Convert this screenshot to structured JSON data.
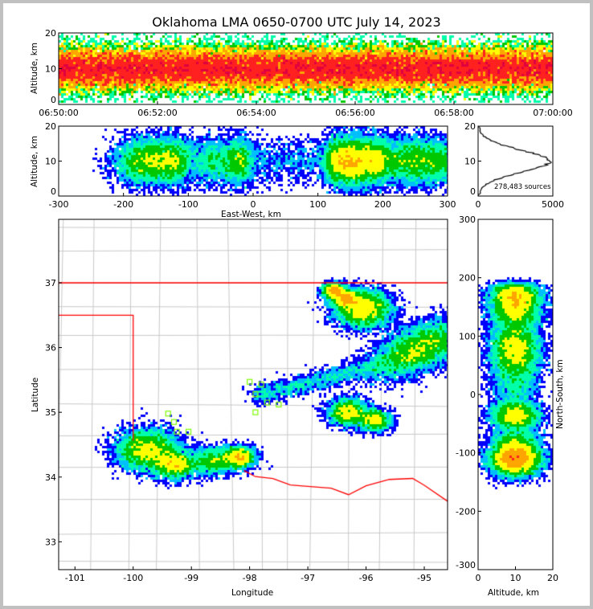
{
  "chart_data": [
    {
      "type": "heatmap",
      "panel": "time-height",
      "title": "Oklahoma LMA 0650-0700 UTC July 14, 2023",
      "xlabel": "",
      "ylabel": "Altitude, km",
      "xlim_minutes": [
        0,
        10
      ],
      "ylim": [
        0,
        20
      ],
      "xticks": [
        "06:50:00",
        "06:52:00",
        "06:54:00",
        "06:56:00",
        "06:58:00",
        "07:00:00"
      ],
      "yticks": [
        "0",
        "10",
        "20"
      ]
    },
    {
      "type": "heatmap",
      "panel": "east-west-altitude",
      "xlabel": "East-West, km",
      "ylabel": "Altitude, km",
      "xlim": [
        -300,
        300
      ],
      "ylim": [
        0,
        20
      ],
      "xticks": [
        "-300",
        "-200",
        "-100",
        "0",
        "100",
        "200",
        "300"
      ],
      "yticks": [
        "0",
        "10",
        "20"
      ]
    },
    {
      "type": "line",
      "panel": "altitude-histogram",
      "xlim": [
        0,
        5000
      ],
      "ylim": [
        0,
        20
      ],
      "xticks": [
        "0",
        "5000"
      ],
      "yticks": [
        "0",
        "10",
        "20"
      ],
      "annotation": "278,483 sources",
      "peak_altitude_km": 10.5,
      "peak_count": 4900
    },
    {
      "type": "heatmap",
      "panel": "plan-view",
      "xlabel": "Longitude",
      "ylabel": "Latitude",
      "xlim": [
        -101.28,
        -94.6
      ],
      "ylim": [
        32.57,
        37.98
      ],
      "xticks": [
        "-101",
        "-100",
        "-99",
        "-98",
        "-97",
        "-96",
        "-95"
      ],
      "yticks": [
        "33",
        "34",
        "35",
        "36",
        "37"
      ],
      "storm_cells": [
        {
          "lon": -99.75,
          "lat": 34.42,
          "spread": 0.22,
          "weight": 1.0
        },
        {
          "lon": -99.3,
          "lat": 34.2,
          "spread": 0.15,
          "weight": 0.6
        },
        {
          "lon": -98.65,
          "lat": 34.25,
          "spread": 0.15,
          "weight": 0.3
        },
        {
          "lon": -98.2,
          "lat": 34.3,
          "spread": 0.12,
          "weight": 0.5
        },
        {
          "lon": -96.55,
          "lat": 36.88,
          "spread": 0.08,
          "weight": 0.3
        },
        {
          "lon": -96.35,
          "lat": 36.75,
          "spread": 0.1,
          "weight": 0.4
        },
        {
          "lon": -96.05,
          "lat": 36.6,
          "spread": 0.2,
          "weight": 1.0
        },
        {
          "lon": -95.05,
          "lat": 36.0,
          "spread": 0.3,
          "weight": 1.3
        },
        {
          "lon": -96.3,
          "lat": 35.0,
          "spread": 0.14,
          "weight": 0.5
        },
        {
          "lon": -95.85,
          "lat": 34.88,
          "spread": 0.12,
          "weight": 0.3
        },
        {
          "lon": -96.5,
          "lat": 35.5,
          "spread": 0.5,
          "weight": 0.4
        }
      ]
    },
    {
      "type": "heatmap",
      "panel": "altitude-north-south",
      "xlabel": "Altitude, km",
      "ylabel": "North-South, km",
      "xlim": [
        0,
        20
      ],
      "ylim": [
        -300,
        300
      ],
      "xticks": [
        "0",
        "10",
        "20"
      ],
      "yticks": [
        "-300",
        "-200",
        "-100",
        "0",
        "100",
        "200",
        "300"
      ]
    }
  ],
  "colors": {
    "border": "#ff0000",
    "county": "#c8c8c8",
    "density_scale": [
      "#9b30ff",
      "#0000ff",
      "#00bfff",
      "#00ffaa",
      "#00c800",
      "#ffff00",
      "#ffa500",
      "#ff2020",
      "#e00040",
      "#200000",
      "#8c8c8c",
      "#ffffff"
    ]
  }
}
